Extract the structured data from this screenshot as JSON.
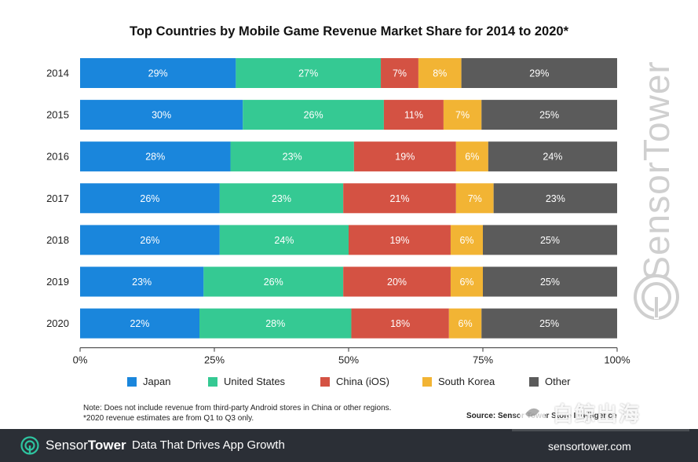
{
  "chart_data": {
    "type": "bar",
    "orientation": "horizontal",
    "stacked": true,
    "title": "Top Countries by Mobile Game Revenue Market Share for 2014 to 2020*",
    "categories": [
      "2014",
      "2015",
      "2016",
      "2017",
      "2018",
      "2019",
      "2020"
    ],
    "series": [
      {
        "name": "Japan",
        "color": "#1a86dc",
        "values": [
          29,
          30,
          28,
          26,
          26,
          23,
          22
        ]
      },
      {
        "name": "United States",
        "color": "#35c993",
        "values": [
          27,
          26,
          23,
          23,
          24,
          26,
          28
        ]
      },
      {
        "name": "China (iOS)",
        "color": "#d45243",
        "values": [
          7,
          11,
          19,
          21,
          19,
          20,
          18
        ]
      },
      {
        "name": "South Korea",
        "color": "#f2b434",
        "values": [
          8,
          7,
          6,
          7,
          6,
          6,
          6
        ]
      },
      {
        "name": "Other",
        "color": "#5b5b5b",
        "values": [
          29,
          25,
          24,
          23,
          25,
          25,
          25
        ]
      }
    ],
    "xlim": [
      0,
      100
    ],
    "xticks": [
      "0%",
      "25%",
      "50%",
      "75%",
      "100%"
    ],
    "legend_position": "bottom"
  },
  "notes": {
    "line1": "Note: Does not include revenue from third-party Android stores in China or other regions.",
    "line2": "*2020 revenue estimates are from Q1 to Q3 only."
  },
  "source": "Source: Sensor Tower Store Intelligence",
  "watermark": {
    "text": "SensorTower"
  },
  "footer": {
    "brand_light": "Sensor",
    "brand_bold": "Tower",
    "tagline": "Data That Drives App Growth",
    "url": "sensortower.com"
  },
  "stamp": {
    "text": "白鲸出海"
  }
}
